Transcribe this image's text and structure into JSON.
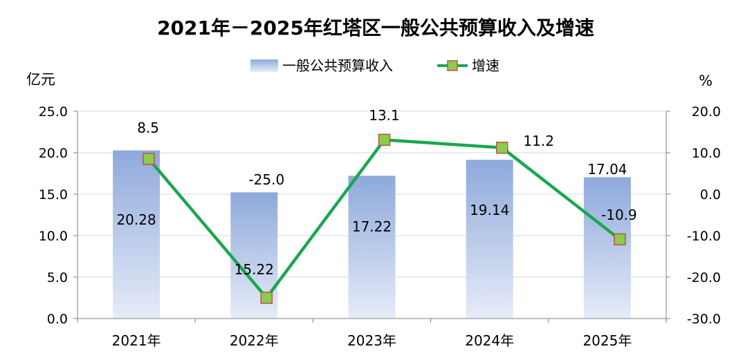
{
  "chart_data": {
    "type": "bar+line",
    "title": "2021年－2025年红塔区一般公共预算收入及增速",
    "categories": [
      "2021年",
      "2022年",
      "2023年",
      "2024年",
      "2025年"
    ],
    "series": [
      {
        "name": "一般公共预算收入",
        "type": "bar",
        "axis": "left",
        "values": [
          20.28,
          15.22,
          17.22,
          19.14,
          17.04
        ],
        "labels": [
          "20.28",
          "15.22",
          "17.22",
          "19.14",
          "17.04"
        ]
      },
      {
        "name": "增速",
        "type": "line",
        "axis": "right",
        "values": [
          8.5,
          -25.0,
          13.1,
          11.2,
          -10.9
        ],
        "labels": [
          "8.5",
          "-25.0",
          "13.1",
          "11.2",
          "-10.9"
        ]
      }
    ],
    "y_left": {
      "label": "亿元",
      "min": 0,
      "max": 25,
      "ticks": [
        "0.0",
        "5.0",
        "10.0",
        "15.0",
        "20.0",
        "25.0"
      ]
    },
    "y_right": {
      "label": "%",
      "min": -30,
      "max": 20,
      "ticks": [
        "-30.0",
        "-20.0",
        "-10.0",
        "0.0",
        "10.0",
        "20.0"
      ]
    },
    "grid": true,
    "legend": "top-center",
    "colors": {
      "bar_top": "#8EA9DB",
      "bar_bottom": "#E6ECF8",
      "line": "#18A84E",
      "marker_fill": "#8CCB4E",
      "marker_stroke": "#C0504D",
      "grid": "#D9D9D9",
      "axis": "#808080"
    }
  }
}
